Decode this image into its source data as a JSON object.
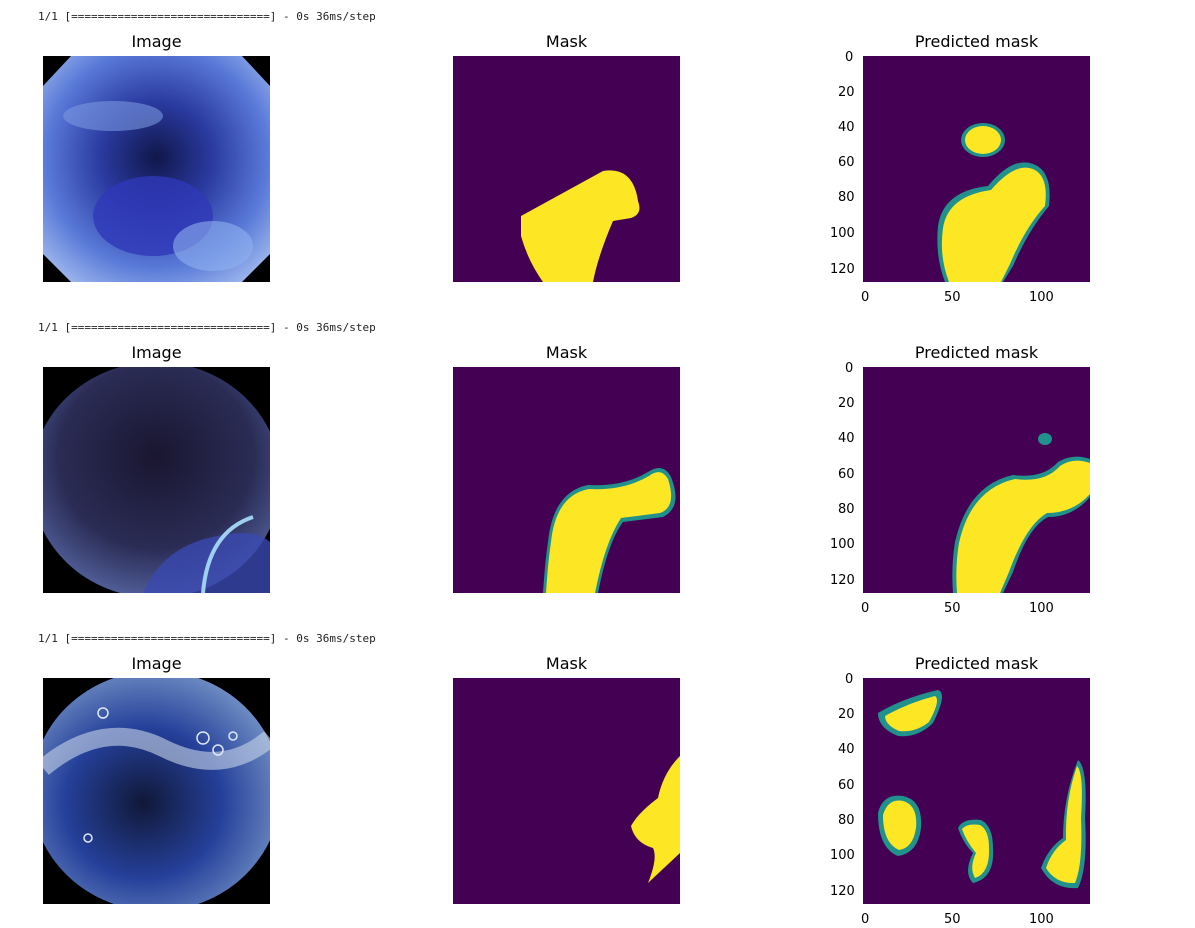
{
  "rows": [
    {
      "log": "1/1 [==============================] - 0s 36ms/step",
      "titles": {
        "image": "Image",
        "mask": "Mask",
        "pred": "Predicted mask"
      }
    },
    {
      "log": "1/1 [==============================] - 0s 36ms/step",
      "titles": {
        "image": "Image",
        "mask": "Mask",
        "pred": "Predicted mask"
      }
    },
    {
      "log": "1/1 [==============================] - 0s 36ms/step",
      "titles": {
        "image": "Image",
        "mask": "Mask",
        "pred": "Predicted mask"
      }
    }
  ],
  "axes": {
    "y_ticks": [
      "0",
      "20",
      "40",
      "60",
      "80",
      "100",
      "120"
    ],
    "x_ticks": [
      "0",
      "50",
      "100"
    ]
  },
  "colors": {
    "mask_bg": "#440154",
    "mask_fg": "#fde725",
    "mid": "#21918c"
  }
}
